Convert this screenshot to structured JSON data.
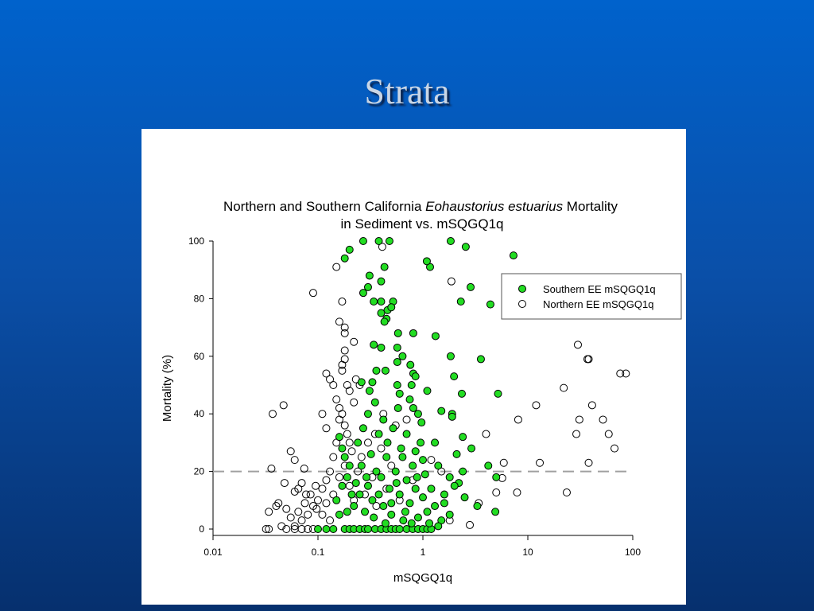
{
  "slide": {
    "title": "Strata"
  },
  "chart_data": {
    "type": "scatter",
    "title_line1_prefix": "Northern and Southern California ",
    "title_line1_italic": "Eohaustorius estuarius",
    "title_line1_suffix": " Mortality",
    "title_line2": "in Sediment vs. mSQGQ1q",
    "xlabel": "mSQGQ1q",
    "ylabel": "Mortality (%)",
    "xscale": "log",
    "xlim": [
      0.01,
      100
    ],
    "ylim": [
      0,
      100
    ],
    "xticks": [
      "0.01",
      "0.1",
      "1",
      "10",
      "100"
    ],
    "xtick_values": [
      0.01,
      0.1,
      1,
      10,
      100
    ],
    "yticks": [
      "0",
      "20",
      "40",
      "60",
      "80",
      "100"
    ],
    "ytick_values": [
      0,
      20,
      40,
      60,
      80,
      100
    ],
    "grid": false,
    "reference_line": {
      "y": 20,
      "style": "dashed",
      "color": "#a0a0a0"
    },
    "legend_position": "top-right",
    "series": [
      {
        "name": "Southern EE mSQGQ1q",
        "marker": "filled-circle",
        "color": "#22dd22",
        "points": [
          [
            0.27,
            100
          ],
          [
            0.38,
            100
          ],
          [
            0.48,
            100
          ],
          [
            1.84,
            100
          ],
          [
            2.56,
            98
          ],
          [
            7.3,
            95
          ],
          [
            0.18,
            94
          ],
          [
            0.2,
            97
          ],
          [
            0.43,
            91
          ],
          [
            1.17,
            91
          ],
          [
            1.09,
            93
          ],
          [
            2.85,
            84
          ],
          [
            4.4,
            78
          ],
          [
            2.3,
            79
          ],
          [
            0.31,
            88
          ],
          [
            0.4,
            86
          ],
          [
            0.27,
            82
          ],
          [
            0.3,
            84
          ],
          [
            0.34,
            79
          ],
          [
            0.4,
            79
          ],
          [
            0.52,
            79
          ],
          [
            0.46,
            76
          ],
          [
            0.5,
            77
          ],
          [
            0.4,
            75
          ],
          [
            0.45,
            73
          ],
          [
            0.43,
            72
          ],
          [
            0.81,
            68
          ],
          [
            1.32,
            67
          ],
          [
            0.58,
            68
          ],
          [
            0.34,
            64
          ],
          [
            0.4,
            63
          ],
          [
            0.57,
            63
          ],
          [
            0.64,
            60
          ],
          [
            1.84,
            60
          ],
          [
            3.57,
            59
          ],
          [
            0.57,
            58
          ],
          [
            0.76,
            57
          ],
          [
            0.81,
            54
          ],
          [
            0.85,
            53
          ],
          [
            1.98,
            53
          ],
          [
            2.35,
            47
          ],
          [
            5.2,
            47
          ],
          [
            0.26,
            51
          ],
          [
            0.33,
            51
          ],
          [
            0.57,
            50
          ],
          [
            0.78,
            50
          ],
          [
            1.1,
            48
          ],
          [
            1.5,
            41
          ],
          [
            1.9,
            40
          ],
          [
            1.9,
            39
          ],
          [
            0.81,
            42
          ],
          [
            0.97,
            37
          ],
          [
            4.2,
            22
          ],
          [
            5.0,
            18
          ],
          [
            4.9,
            6
          ],
          [
            3.3,
            8
          ],
          [
            2.5,
            11
          ],
          [
            2.2,
            16
          ],
          [
            1.8,
            18
          ],
          [
            2.9,
            28
          ],
          [
            2.1,
            26
          ],
          [
            2.4,
            32
          ],
          [
            0.16,
            32
          ],
          [
            0.17,
            28
          ],
          [
            0.18,
            25
          ],
          [
            0.2,
            22
          ],
          [
            0.19,
            18
          ],
          [
            0.17,
            15
          ],
          [
            0.15,
            10
          ],
          [
            0.16,
            5
          ],
          [
            0.18,
            0
          ],
          [
            0.2,
            0
          ],
          [
            0.22,
            0
          ],
          [
            0.25,
            0
          ],
          [
            0.28,
            0
          ],
          [
            0.3,
            0
          ],
          [
            0.35,
            0
          ],
          [
            0.4,
            0
          ],
          [
            0.45,
            0
          ],
          [
            0.5,
            0
          ],
          [
            0.55,
            0
          ],
          [
            0.6,
            0
          ],
          [
            0.7,
            0
          ],
          [
            0.8,
            0
          ],
          [
            0.9,
            0
          ],
          [
            1.0,
            0
          ],
          [
            1.1,
            0
          ],
          [
            1.2,
            0
          ],
          [
            0.12,
            0
          ],
          [
            0.14,
            0
          ],
          [
            0.1,
            0
          ],
          [
            0.22,
            8
          ],
          [
            0.25,
            12
          ],
          [
            0.28,
            6
          ],
          [
            0.3,
            15
          ],
          [
            0.33,
            10
          ],
          [
            0.36,
            20
          ],
          [
            0.4,
            18
          ],
          [
            0.42,
            8
          ],
          [
            0.45,
            25
          ],
          [
            0.48,
            14
          ],
          [
            0.5,
            5
          ],
          [
            0.55,
            20
          ],
          [
            0.6,
            12
          ],
          [
            0.62,
            28
          ],
          [
            0.65,
            3
          ],
          [
            0.7,
            17
          ],
          [
            0.75,
            9
          ],
          [
            0.8,
            22
          ],
          [
            0.85,
            14
          ],
          [
            0.9,
            4
          ],
          [
            0.95,
            30
          ],
          [
            1.0,
            11
          ],
          [
            1.05,
            19
          ],
          [
            1.1,
            6
          ],
          [
            1.2,
            14
          ],
          [
            1.3,
            8
          ],
          [
            1.4,
            22
          ],
          [
            1.5,
            3
          ],
          [
            1.6,
            12
          ],
          [
            0.24,
            30
          ],
          [
            0.27,
            35
          ],
          [
            0.3,
            40
          ],
          [
            0.32,
            26
          ],
          [
            0.35,
            44
          ],
          [
            0.38,
            33
          ],
          [
            0.42,
            38
          ],
          [
            0.46,
            30
          ],
          [
            0.52,
            35
          ],
          [
            0.58,
            42
          ],
          [
            0.64,
            25
          ],
          [
            0.7,
            33
          ],
          [
            0.75,
            45
          ],
          [
            0.85,
            27
          ],
          [
            1.0,
            24
          ],
          [
            1.3,
            30
          ],
          [
            0.26,
            22
          ],
          [
            0.29,
            18
          ],
          [
            0.34,
            4
          ],
          [
            0.38,
            12
          ],
          [
            0.44,
            2
          ],
          [
            0.5,
            9
          ],
          [
            0.56,
            16
          ],
          [
            0.68,
            6
          ],
          [
            0.78,
            2
          ],
          [
            0.88,
            18
          ],
          [
            1.15,
            2
          ],
          [
            0.23,
            16
          ],
          [
            0.21,
            12
          ],
          [
            0.19,
            6
          ],
          [
            0.31,
            48
          ],
          [
            0.36,
            55
          ],
          [
            0.44,
            55
          ],
          [
            0.6,
            47
          ],
          [
            0.9,
            40
          ],
          [
            1.6,
            9
          ],
          [
            2.0,
            15
          ],
          [
            2.4,
            20
          ],
          [
            1.8,
            5
          ],
          [
            1.4,
            1
          ]
        ]
      },
      {
        "name": "Northern EE mSQGQ1q",
        "marker": "open-circle",
        "color": "#ffffff",
        "points": [
          [
            0.09,
            82
          ],
          [
            0.047,
            43
          ],
          [
            0.037,
            40
          ],
          [
            0.15,
            91
          ],
          [
            0.41,
            98
          ],
          [
            1.87,
            86
          ],
          [
            0.17,
            79
          ],
          [
            0.16,
            72
          ],
          [
            0.18,
            70
          ],
          [
            0.18,
            68
          ],
          [
            0.22,
            65
          ],
          [
            0.18,
            62
          ],
          [
            0.18,
            59
          ],
          [
            0.17,
            57
          ],
          [
            0.12,
            54
          ],
          [
            0.13,
            52
          ],
          [
            0.14,
            50
          ],
          [
            30,
            64
          ],
          [
            37,
            59
          ],
          [
            38,
            59
          ],
          [
            76,
            54
          ],
          [
            86,
            54
          ],
          [
            22,
            49
          ],
          [
            12,
            43
          ],
          [
            41,
            43
          ],
          [
            8.1,
            38
          ],
          [
            31,
            38
          ],
          [
            52,
            38
          ],
          [
            29,
            33
          ],
          [
            59,
            33
          ],
          [
            67,
            28
          ],
          [
            4,
            33
          ],
          [
            13,
            23
          ],
          [
            38,
            23
          ],
          [
            5.9,
            23
          ],
          [
            23.5,
            12.7
          ],
          [
            7.9,
            12.7
          ],
          [
            5,
            12.7
          ],
          [
            5.7,
            17.7
          ],
          [
            3.4,
            9
          ],
          [
            2.8,
            1.4
          ],
          [
            0.055,
            27
          ],
          [
            0.06,
            24
          ],
          [
            0.036,
            21
          ],
          [
            0.074,
            21
          ],
          [
            0.034,
            6
          ],
          [
            0.042,
            9
          ],
          [
            0.032,
            0
          ],
          [
            0.034,
            0
          ],
          [
            0.048,
            16
          ],
          [
            0.065,
            14
          ],
          [
            0.077,
            12
          ],
          [
            0.097,
            7
          ],
          [
            0.15,
            45
          ],
          [
            0.16,
            42
          ],
          [
            0.17,
            40
          ],
          [
            0.18,
            36
          ],
          [
            0.19,
            33
          ],
          [
            0.2,
            30
          ],
          [
            0.21,
            27
          ],
          [
            0.22,
            44
          ],
          [
            0.16,
            38
          ],
          [
            0.15,
            30
          ],
          [
            0.14,
            25
          ],
          [
            0.13,
            20
          ],
          [
            0.12,
            17
          ],
          [
            0.11,
            14
          ],
          [
            0.1,
            10
          ],
          [
            0.09,
            8
          ],
          [
            0.08,
            5
          ],
          [
            0.07,
            3
          ],
          [
            0.06,
            1
          ],
          [
            0.05,
            0
          ],
          [
            0.06,
            0
          ],
          [
            0.07,
            0
          ],
          [
            0.08,
            0
          ],
          [
            0.09,
            0
          ],
          [
            0.045,
            1
          ],
          [
            0.055,
            4
          ],
          [
            0.065,
            6
          ],
          [
            0.075,
            9
          ],
          [
            0.085,
            12
          ],
          [
            0.095,
            15
          ],
          [
            0.11,
            5
          ],
          [
            0.12,
            9
          ],
          [
            0.13,
            3
          ],
          [
            0.14,
            12
          ],
          [
            0.16,
            18
          ],
          [
            0.18,
            22
          ],
          [
            0.2,
            15
          ],
          [
            0.22,
            10
          ],
          [
            0.24,
            20
          ],
          [
            0.26,
            25
          ],
          [
            0.28,
            12
          ],
          [
            0.3,
            30
          ],
          [
            0.33,
            18
          ],
          [
            0.36,
            8
          ],
          [
            0.4,
            28
          ],
          [
            0.45,
            14
          ],
          [
            0.5,
            22
          ],
          [
            0.55,
            36
          ],
          [
            0.6,
            10
          ],
          [
            0.7,
            38
          ],
          [
            0.8,
            17
          ],
          [
            0.25,
            50
          ],
          [
            0.2,
            48
          ],
          [
            0.23,
            52
          ],
          [
            0.35,
            33
          ],
          [
            0.42,
            40
          ],
          [
            0.17,
            55
          ],
          [
            0.19,
            50
          ],
          [
            0.06,
            13
          ],
          [
            0.07,
            16
          ],
          [
            0.05,
            7
          ],
          [
            0.04,
            8
          ],
          [
            0.12,
            35
          ],
          [
            0.11,
            40
          ],
          [
            1.2,
            24
          ],
          [
            1.5,
            20
          ],
          [
            1.8,
            3
          ]
        ]
      }
    ]
  }
}
